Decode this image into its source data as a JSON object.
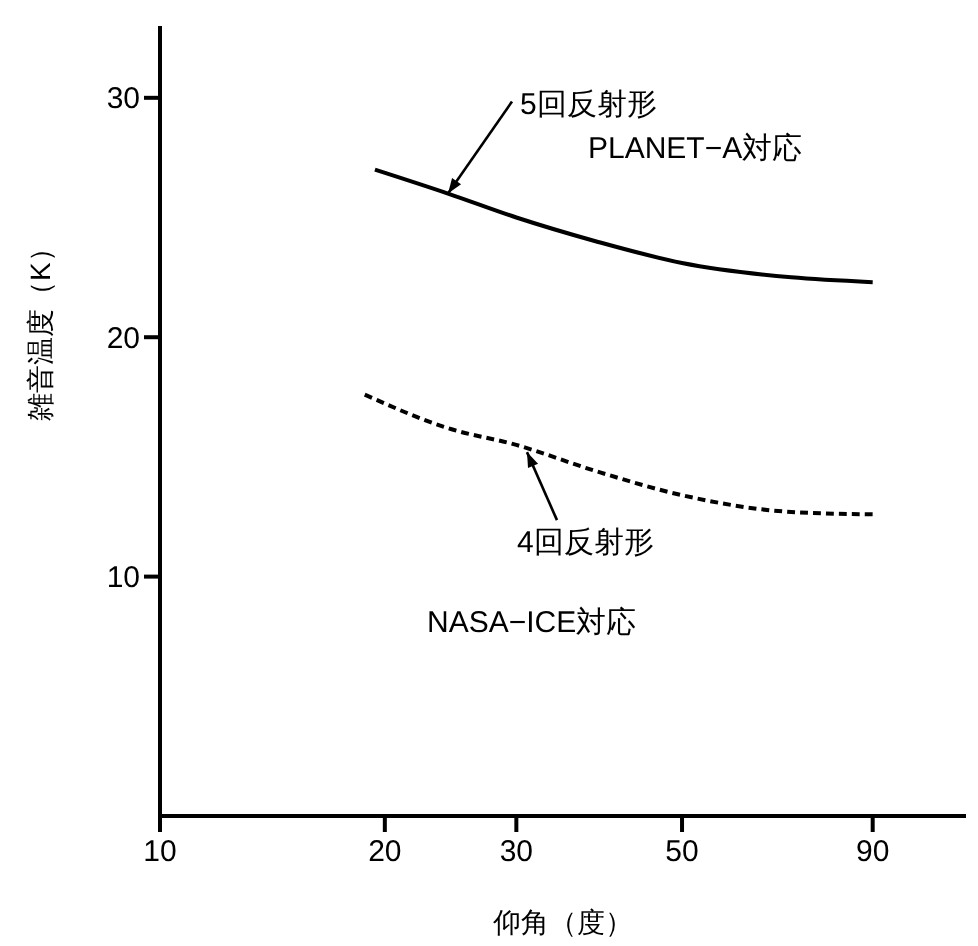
{
  "chart_data": {
    "type": "line",
    "xlabel": "仰角（度）",
    "ylabel": "雑音温度（K）",
    "log": "x",
    "xlim": [
      10,
      120
    ],
    "xticks": [
      10,
      20,
      30,
      50,
      90
    ],
    "ylim": [
      0,
      33
    ],
    "yticks": [
      10,
      20,
      30
    ],
    "marker": "none",
    "grid": false,
    "series": [
      {
        "color": "#000000",
        "line_style": "solid",
        "x": [
          19.4,
          24.3,
          30,
          38.4,
          50,
          70,
          90
        ],
        "values": [
          27.0,
          26.0,
          25.0,
          24.0,
          23.1,
          22.5,
          22.3
        ]
      },
      {
        "color": "#000000",
        "line_style": "dashed",
        "x": [
          18.8,
          24.3,
          30,
          38.4,
          50,
          70,
          90
        ],
        "values": [
          17.6,
          16.2,
          15.5,
          14.4,
          13.4,
          12.7,
          12.6
        ]
      }
    ],
    "annotations": [
      {
        "text": "5回反射形",
        "x": 24.3,
        "y": 26.0
      },
      "PLANET−A対応",
      {
        "text": "4回反射形",
        "x": 31,
        "y": 15.2
      },
      "NASA−ICE対応"
    ]
  }
}
